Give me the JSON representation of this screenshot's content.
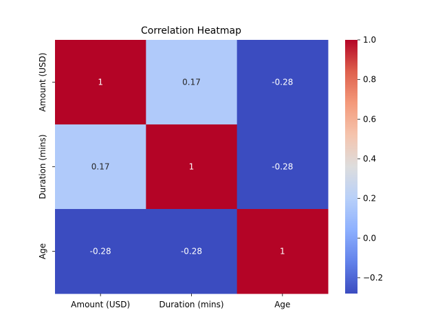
{
  "chart_data": {
    "type": "heatmap",
    "title": "Correlation Heatmap",
    "xlabel": "",
    "ylabel": "",
    "x_categories": [
      "Amount (USD)",
      "Duration (mins)",
      "Age"
    ],
    "y_categories": [
      "Amount (USD)",
      "Duration (mins)",
      "Age"
    ],
    "values": [
      [
        1,
        0.17,
        -0.28
      ],
      [
        0.17,
        1,
        -0.28
      ],
      [
        -0.28,
        -0.28,
        1
      ]
    ],
    "cell_labels": [
      [
        "1",
        "0.17",
        "-0.28"
      ],
      [
        "0.17",
        "1",
        "-0.28"
      ],
      [
        "-0.28",
        "-0.28",
        "1"
      ]
    ],
    "colormap": "coolwarm",
    "colorbar": {
      "range": [
        -0.28,
        1.0
      ],
      "ticks": [
        -0.2,
        0.0,
        0.2,
        0.4,
        0.6,
        0.8,
        1.0
      ],
      "tick_labels": [
        "−0.2",
        "0.0",
        "0.2",
        "0.4",
        "0.6",
        "0.8",
        "1.0"
      ]
    },
    "grid": false,
    "legend": "colorbar-right"
  }
}
